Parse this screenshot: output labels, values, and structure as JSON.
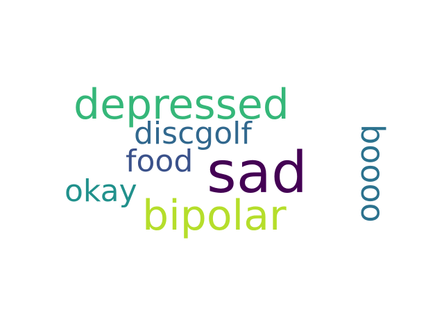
{
  "word_cloud": {
    "words": [
      {
        "text": "sad",
        "color": "#440154",
        "weight": 1.0
      },
      {
        "text": "depressed",
        "color": "#35b779",
        "weight": 0.7
      },
      {
        "text": "bipolar",
        "color": "#b5de2b",
        "weight": 0.7
      },
      {
        "text": "discgolf",
        "color": "#31688e",
        "weight": 0.5
      },
      {
        "text": "food",
        "color": "#3b528b",
        "weight": 0.5
      },
      {
        "text": "okay",
        "color": "#21918c",
        "weight": 0.5
      },
      {
        "text": "boooo",
        "color": "#2c728e",
        "weight": 0.5,
        "orientation": "vertical"
      }
    ]
  }
}
